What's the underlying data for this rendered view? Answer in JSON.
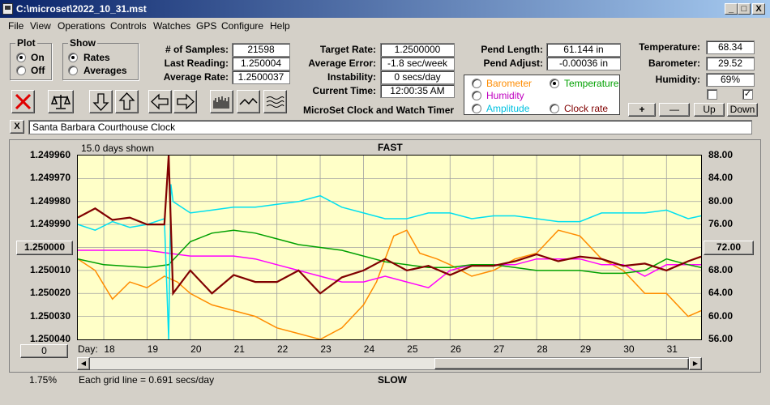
{
  "window": {
    "title": "C:\\microset\\2022_10_31.mst",
    "min": "_",
    "max": "□",
    "close": "X"
  },
  "menu": [
    "File",
    "View",
    "Operations",
    "Controls",
    "Watches",
    "GPS",
    "Configure",
    "Help"
  ],
  "plot_group": {
    "title": "Plot",
    "on": "On",
    "off": "Off",
    "selected": "On"
  },
  "show_group": {
    "title": "Show",
    "rates": "Rates",
    "averages": "Averages",
    "selected": "Rates"
  },
  "stats": {
    "samples_label": "# of Samples:",
    "samples": "21598",
    "last_label": "Last Reading:",
    "last": "1.250004",
    "avg_label": "Average Rate:",
    "avg": "1.2500037",
    "target_label": "Target Rate:",
    "target": "1.2500000",
    "error_label": "Average Error:",
    "error": "-1.8 sec/week",
    "instab_label": "Instability:",
    "instab": "0 secs/day",
    "time_label": "Current Time:",
    "time": "12:00:35 AM",
    "plen_label": "Pend Length:",
    "plen": "61.144 in",
    "padj_label": "Pend Adjust:",
    "padj": "-0.00036 in",
    "temp_label": "Temperature:",
    "temp": "68.34",
    "baro_label": "Barometer:",
    "baro": "29.52",
    "hum_label": "Humidity:",
    "hum": "69%"
  },
  "app_name": "MicroSet Clock and Watch Timer",
  "secondary": {
    "barometer": "Barometer",
    "temperature": "Temperature",
    "humidity": "Humidity",
    "amplitude": "Amplitude",
    "clock_rate": "Clock rate",
    "selected": "Temperature"
  },
  "scale_buttons": {
    "plus": "+",
    "minus": "—",
    "up": "Up",
    "down": "Down"
  },
  "checks": [
    {
      "checked": false
    },
    {
      "checked": true
    }
  ],
  "toolbar": {
    "close_x": "X"
  },
  "watch_name": "Santa Barbara Courthouse Clock",
  "chart_labels": {
    "days_shown": "15.0 days shown",
    "fast": "FAST",
    "slow": "SLOW",
    "grid_note": "Each grid line = 0.691 secs/day",
    "day_label": "Day:",
    "percent": "1.75%",
    "left_btn": "0",
    "center_left": "1.250000",
    "center_right": "72.00"
  },
  "colors": {
    "rate": "#800000",
    "temperature": "#00a000",
    "barometer": "#ff8c00",
    "humidity": "#ff00ff",
    "amplitude": "#00e0f0"
  },
  "chart_data": {
    "type": "line",
    "x_range": [
      17.4,
      31.8
    ],
    "x_ticks": [
      18,
      19,
      20,
      21,
      22,
      23,
      24,
      25,
      26,
      27,
      28,
      29,
      30,
      31
    ],
    "y_left_ticks": [
      "1.249960",
      "1.249970",
      "1.249980",
      "1.249990",
      "1.250000",
      "1.250010",
      "1.250020",
      "1.250030",
      "1.250040"
    ],
    "y_left_range": [
      1.24996,
      1.25004
    ],
    "y_right_ticks": [
      "88.00",
      "84.00",
      "80.00",
      "76.00",
      "72.00",
      "68.00",
      "64.00",
      "60.00",
      "56.00"
    ],
    "y_right_range": [
      56,
      88
    ],
    "series": [
      {
        "key": "rate",
        "axis": "left",
        "x": [
          17.4,
          17.8,
          18.2,
          18.6,
          19.0,
          19.4,
          19.5,
          19.6,
          20.0,
          20.5,
          21.0,
          21.5,
          22.0,
          22.5,
          23.0,
          23.5,
          24.0,
          24.5,
          25.0,
          25.5,
          26.0,
          26.5,
          27.0,
          27.5,
          28.0,
          28.5,
          29.0,
          29.5,
          30.0,
          30.5,
          31.0,
          31.5,
          31.8
        ],
        "y": [
          1.249987,
          1.249983,
          1.249988,
          1.249987,
          1.24999,
          1.24999,
          1.24996,
          1.25002,
          1.25001,
          1.25002,
          1.250012,
          1.250015,
          1.250015,
          1.25001,
          1.25002,
          1.250013,
          1.25001,
          1.250005,
          1.25001,
          1.250008,
          1.250012,
          1.250008,
          1.250008,
          1.250006,
          1.250003,
          1.250006,
          1.250004,
          1.250005,
          1.250008,
          1.250007,
          1.25001,
          1.250006,
          1.250004
        ]
      },
      {
        "key": "temperature",
        "axis": "right",
        "x": [
          17.4,
          18.0,
          19.0,
          19.5,
          20.0,
          20.5,
          21.0,
          21.5,
          22.0,
          22.5,
          23.0,
          23.5,
          24.0,
          24.5,
          25.0,
          25.5,
          26.0,
          26.5,
          27.0,
          27.5,
          28.0,
          28.5,
          29.0,
          29.5,
          30.0,
          30.5,
          31.0,
          31.5,
          31.8
        ],
        "y": [
          70,
          69,
          68.5,
          69,
          73,
          74.5,
          75,
          74.5,
          73.5,
          72.5,
          72,
          71.5,
          70.5,
          69.5,
          69,
          68.5,
          68.5,
          69,
          69,
          68.5,
          68,
          68,
          68,
          67.5,
          67.5,
          68,
          70,
          69,
          68.5
        ]
      },
      {
        "key": "barometer",
        "axis": "right",
        "x": [
          17.4,
          17.8,
          18.2,
          18.6,
          19.0,
          19.4,
          19.7,
          20.0,
          20.5,
          21.0,
          21.5,
          22.0,
          22.5,
          23.0,
          23.5,
          24.0,
          24.3,
          24.7,
          25.0,
          25.3,
          25.7,
          26.0,
          26.5,
          27.0,
          27.5,
          28.0,
          28.5,
          29.0,
          29.5,
          30.0,
          30.5,
          31.0,
          31.5,
          31.8
        ],
        "y": [
          70,
          68,
          63,
          66,
          65,
          67,
          66,
          64,
          62,
          61,
          60,
          58,
          57,
          56,
          58,
          62,
          66,
          74,
          75,
          71,
          70,
          69,
          67,
          68,
          70,
          71,
          75,
          74,
          70,
          68,
          64,
          64,
          60,
          61
        ]
      },
      {
        "key": "humidity",
        "axis": "right",
        "x": [
          17.4,
          18.0,
          19.0,
          19.5,
          20.0,
          20.5,
          21.0,
          21.5,
          22.0,
          22.5,
          23.0,
          23.5,
          24.0,
          24.5,
          25.0,
          25.5,
          26.0,
          26.5,
          27.0,
          27.5,
          28.0,
          28.5,
          29.0,
          29.5,
          30.0,
          30.5,
          31.0,
          31.5,
          31.8
        ],
        "y": [
          71.5,
          71.5,
          71.5,
          71,
          70.5,
          70.5,
          70.5,
          70,
          69,
          68,
          67,
          66,
          66,
          67,
          66,
          65,
          68,
          69,
          69,
          69,
          70,
          70,
          70,
          69,
          69,
          67,
          69,
          69,
          69
        ]
      },
      {
        "key": "amplitude",
        "axis": "right",
        "x": [
          17.4,
          17.8,
          18.2,
          18.6,
          19.0,
          19.4,
          19.5,
          19.55,
          19.6,
          20.0,
          20.5,
          21.0,
          21.5,
          22.0,
          22.5,
          23.0,
          23.5,
          24.0,
          24.5,
          25.0,
          25.5,
          26.0,
          26.5,
          27.0,
          27.5,
          28.0,
          28.5,
          29.0,
          29.5,
          30.0,
          30.5,
          31.0,
          31.5,
          31.8
        ],
        "y": [
          76,
          75,
          76.5,
          75.5,
          76,
          77,
          56,
          83,
          80,
          78,
          78.5,
          79,
          79,
          79.5,
          80,
          81,
          79,
          78,
          77,
          77,
          78,
          78,
          77,
          77.5,
          77.5,
          77,
          76.5,
          76.5,
          78,
          78,
          78,
          78.5,
          77,
          77.5
        ]
      }
    ]
  }
}
